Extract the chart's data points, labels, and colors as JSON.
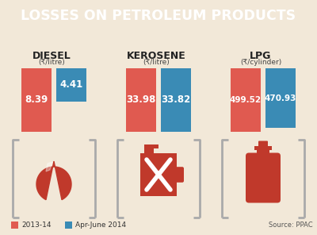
{
  "title": "LOSSES ON PETROLEUM PRODUCTS",
  "title_bg": "#c0392b",
  "title_color": "#ffffff",
  "bg_color": "#f2e8d8",
  "categories": [
    "DIESEL",
    "KEROSENE",
    "LPG"
  ],
  "units": [
    "(₹/litre)",
    "(₹/litre)",
    "(₹/cylinder)"
  ],
  "values_2013": [
    8.39,
    33.98,
    499.52
  ],
  "values_apr": [
    4.41,
    33.82,
    470.93
  ],
  "color_2013": "#e05a50",
  "color_apr": "#3a8bb5",
  "legend_2013": "2013-14",
  "legend_apr": "Apr-June 2014",
  "source": "Source: PPAC",
  "bracket_color": "#aaaaaa",
  "icon_color": "#c0392b"
}
